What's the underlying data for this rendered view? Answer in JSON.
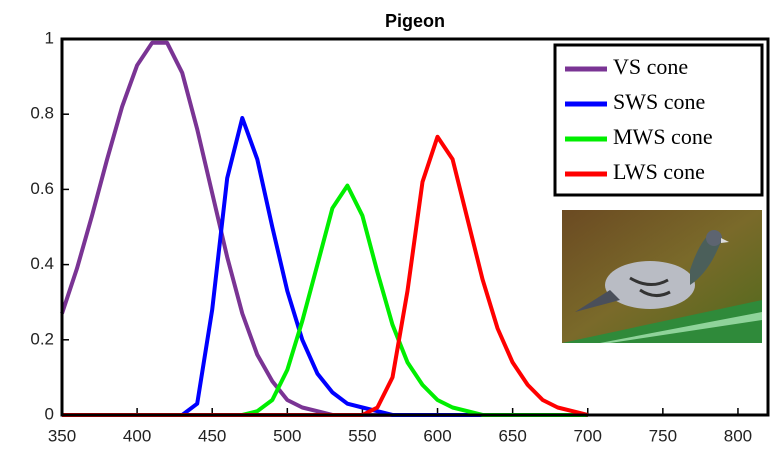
{
  "chart_data": {
    "type": "line",
    "title": "Pigeon",
    "x": [
      350,
      360,
      370,
      380,
      390,
      400,
      410,
      420,
      430,
      440,
      450,
      460,
      470,
      480,
      490,
      500,
      510,
      520,
      530,
      540,
      550,
      560,
      570,
      580,
      590,
      600,
      610,
      620,
      630,
      640,
      650,
      660,
      670,
      680,
      690,
      700
    ],
    "series": [
      {
        "name": "VS cone",
        "color": "#7a3494",
        "values": [
          0.27,
          0.39,
          0.53,
          0.68,
          0.82,
          0.93,
          0.99,
          0.99,
          0.91,
          0.76,
          0.59,
          0.42,
          0.27,
          0.16,
          0.09,
          0.04,
          0.02,
          0.01,
          0,
          0,
          0,
          0,
          0,
          0,
          0,
          0,
          0,
          0,
          0,
          0,
          0,
          0,
          0,
          0,
          0,
          0
        ]
      },
      {
        "name": "SWS cone",
        "color": "#0000ff",
        "values": [
          0,
          0,
          0,
          0,
          0,
          0,
          0,
          0,
          0,
          0.03,
          0.28,
          0.63,
          0.79,
          0.68,
          0.5,
          0.33,
          0.2,
          0.11,
          0.06,
          0.03,
          0.02,
          0.01,
          0,
          0,
          0,
          0,
          0,
          0,
          0,
          0,
          0,
          0,
          0,
          0,
          0,
          0
        ]
      },
      {
        "name": "MWS cone",
        "color": "#00ee00",
        "values": [
          0,
          0,
          0,
          0,
          0,
          0,
          0,
          0,
          0,
          0,
          0,
          0,
          0,
          0.01,
          0.04,
          0.12,
          0.25,
          0.4,
          0.55,
          0.61,
          0.53,
          0.38,
          0.24,
          0.14,
          0.08,
          0.04,
          0.02,
          0.01,
          0,
          0,
          0,
          0,
          0,
          0,
          0,
          0
        ]
      },
      {
        "name": "LWS cone",
        "color": "#ff0000",
        "values": [
          0,
          0,
          0,
          0,
          0,
          0,
          0,
          0,
          0,
          0,
          0,
          0,
          0,
          0,
          0,
          0,
          0,
          0,
          0,
          0,
          0,
          0.02,
          0.1,
          0.33,
          0.62,
          0.74,
          0.68,
          0.52,
          0.36,
          0.23,
          0.14,
          0.08,
          0.04,
          0.02,
          0.01,
          0
        ]
      }
    ],
    "xlim": [
      350,
      820
    ],
    "ylim": [
      0,
      1
    ],
    "xticks": [
      350,
      400,
      450,
      500,
      550,
      600,
      650,
      700,
      750,
      800
    ],
    "yticks": [
      0,
      0.2,
      0.4,
      0.6,
      0.8,
      1
    ],
    "legend": "upper right"
  }
}
